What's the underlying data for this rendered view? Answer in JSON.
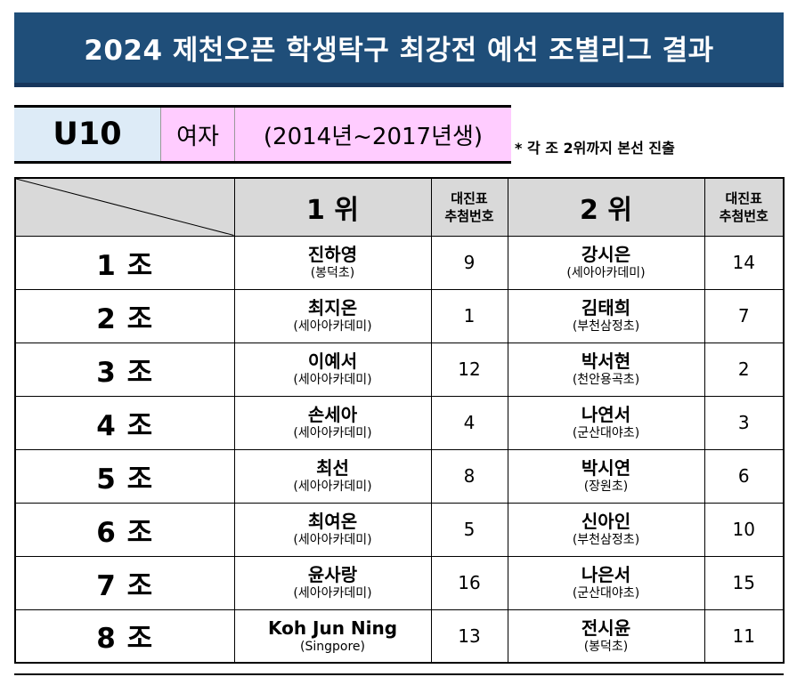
{
  "title": "2024 제천오픈 학생탁구 최강전 예선 조별리그 결과",
  "category": {
    "age": "U10",
    "gender": "여자",
    "years": "(2014년~2017년생)"
  },
  "note": "* 각 조 2위까지 본선 진출",
  "table": {
    "headers": {
      "first": "1 위",
      "draw_first": [
        "대진표",
        "추첨번호"
      ],
      "second": "2 위",
      "draw_second": [
        "대진표",
        "추첨번호"
      ]
    },
    "rows": [
      {
        "group": "1 조",
        "first": {
          "name": "진하영",
          "club": "(봉덕초)",
          "draw": "9"
        },
        "second": {
          "name": "강시은",
          "club": "(세아아카데미)",
          "draw": "14"
        }
      },
      {
        "group": "2 조",
        "first": {
          "name": "최지온",
          "club": "(세아아카데미)",
          "draw": "1"
        },
        "second": {
          "name": "김태희",
          "club": "(부천삼정초)",
          "draw": "7"
        }
      },
      {
        "group": "3 조",
        "first": {
          "name": "이예서",
          "club": "(세아아카데미)",
          "draw": "12"
        },
        "second": {
          "name": "박서현",
          "club": "(천안용곡초)",
          "draw": "2"
        }
      },
      {
        "group": "4 조",
        "first": {
          "name": "손세아",
          "club": "(세아아카데미)",
          "draw": "4"
        },
        "second": {
          "name": "나연서",
          "club": "(군산대야초)",
          "draw": "3"
        }
      },
      {
        "group": "5 조",
        "first": {
          "name": "최선",
          "club": "(세아아카데미)",
          "draw": "8"
        },
        "second": {
          "name": "박시연",
          "club": "(장원초)",
          "draw": "6"
        }
      },
      {
        "group": "6 조",
        "first": {
          "name": "최여온",
          "club": "(세아아카데미)",
          "draw": "5"
        },
        "second": {
          "name": "신아인",
          "club": "(부천삼정초)",
          "draw": "10"
        }
      },
      {
        "group": "7 조",
        "first": {
          "name": "윤사랑",
          "club": "(세아아카데미)",
          "draw": "16"
        },
        "second": {
          "name": "나은서",
          "club": "(군산대야초)",
          "draw": "15"
        }
      },
      {
        "group": "8 조",
        "first": {
          "name": "Koh Jun Ning",
          "club": "(Singpore)",
          "draw": "13"
        },
        "second": {
          "name": "전시윤",
          "club": "(봉덕초)",
          "draw": "11"
        }
      }
    ]
  }
}
